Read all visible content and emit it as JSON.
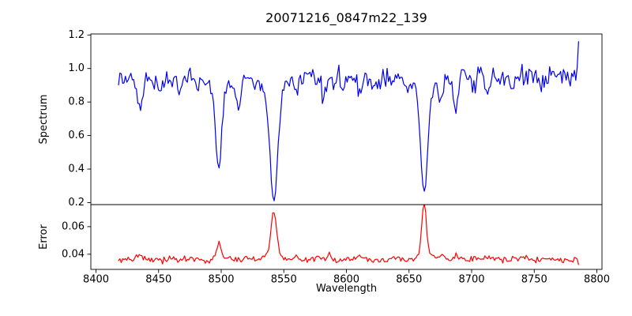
{
  "chart_data": {
    "type": "line",
    "title": "20071216_0847m22_139",
    "xlabel": "Wavelength",
    "xlim": [
      8395.9,
      8804.1
    ],
    "xticks": [
      {
        "v": 8400,
        "label": "8400"
      },
      {
        "v": 8450,
        "label": "8450"
      },
      {
        "v": 8500,
        "label": "8500"
      },
      {
        "v": 8550,
        "label": "8550"
      },
      {
        "v": 8600,
        "label": "8600"
      },
      {
        "v": 8650,
        "label": "8650"
      },
      {
        "v": 8700,
        "label": "8700"
      },
      {
        "v": 8750,
        "label": "8750"
      },
      {
        "v": 8800,
        "label": "8800"
      }
    ],
    "grid": false,
    "legend": null,
    "panels": [
      {
        "name": "spectrum",
        "ylabel": "Spectrum",
        "ylim": [
          0.188,
          1.206
        ],
        "yticks": [
          {
            "v": 0.2,
            "label": "0.2"
          },
          {
            "v": 0.4,
            "label": "0.4"
          },
          {
            "v": 0.6,
            "label": "0.6"
          },
          {
            "v": 0.8,
            "label": "0.8"
          },
          {
            "v": 1.0,
            "label": "1.0"
          },
          {
            "v": 1.2,
            "label": "1.2"
          }
        ],
        "color": "#0000ee",
        "series_model": {
          "x_start": 8418,
          "x_end": 8786,
          "step": 1.1,
          "continuum": 0.94,
          "continuum_slope": 5e-05,
          "noise_sigma": 0.029,
          "seed": 20071216,
          "absorption_lines": [
            {
              "center": 8435.0,
              "depth": 0.17,
              "sigma": 2.2
            },
            {
              "center": 8452.0,
              "depth": 0.07,
              "sigma": 2.0
            },
            {
              "center": 8468.0,
              "depth": 0.09,
              "sigma": 2.0
            },
            {
              "center": 8481.0,
              "depth": 0.07,
              "sigma": 1.8
            },
            {
              "center": 8498.0,
              "depth": 0.48,
              "sigma": 2.4,
              "wing_depth": 0.06,
              "wing_sigma": 7
            },
            {
              "center": 8514.0,
              "depth": 0.17,
              "sigma": 2.2
            },
            {
              "center": 8526.0,
              "depth": 0.06,
              "sigma": 2.0
            },
            {
              "center": 8542.1,
              "depth": 0.66,
              "sigma": 3.0,
              "wing_depth": 0.08,
              "wing_sigma": 9
            },
            {
              "center": 8560.0,
              "depth": 0.08,
              "sigma": 2.0
            },
            {
              "center": 8582.0,
              "depth": 0.11,
              "sigma": 2.0
            },
            {
              "center": 8598.0,
              "depth": 0.07,
              "sigma": 1.8
            },
            {
              "center": 8611.0,
              "depth": 0.09,
              "sigma": 1.8
            },
            {
              "center": 8621.0,
              "depth": 0.07,
              "sigma": 1.8
            },
            {
              "center": 8648.0,
              "depth": 0.06,
              "sigma": 1.8
            },
            {
              "center": 8662.1,
              "depth": 0.62,
              "sigma": 2.8,
              "wing_depth": 0.07,
              "wing_sigma": 8
            },
            {
              "center": 8675.0,
              "depth": 0.13,
              "sigma": 1.8
            },
            {
              "center": 8687.0,
              "depth": 0.18,
              "sigma": 2.0
            },
            {
              "center": 8702.0,
              "depth": 0.08,
              "sigma": 1.8
            },
            {
              "center": 8713.0,
              "depth": 0.09,
              "sigma": 1.8
            },
            {
              "center": 8733.0,
              "depth": 0.09,
              "sigma": 1.8
            },
            {
              "center": 8755.0,
              "depth": 0.07,
              "sigma": 1.8
            }
          ],
          "end_spike_value": 1.16
        }
      },
      {
        "name": "error",
        "ylabel": "Error",
        "ylim": [
          0.029,
          0.076
        ],
        "yticks": [
          {
            "v": 0.04,
            "label": "0.04"
          },
          {
            "v": 0.06,
            "label": "0.06"
          }
        ],
        "color": "#ff0000",
        "series_model": {
          "x_start": 8418,
          "x_end": 8786,
          "step": 1.1,
          "baseline": 0.036,
          "baseline_slope": 0.0,
          "noise_sigma": 0.0011,
          "seed": 847139,
          "peaks": [
            {
              "center": 8435.0,
              "amplitude": 0.003,
              "sigma": 2.0
            },
            {
              "center": 8470.0,
              "amplitude": 0.0015,
              "sigma": 2.0
            },
            {
              "center": 8498.0,
              "amplitude": 0.013,
              "sigma": 2.0
            },
            {
              "center": 8520.0,
              "amplitude": 0.0015,
              "sigma": 2.0
            },
            {
              "center": 8542.1,
              "amplitude": 0.031,
              "sigma": 2.2,
              "wing_amp": 0.004,
              "wing_sigma": 7
            },
            {
              "center": 8560.0,
              "amplitude": 0.0025,
              "sigma": 1.8
            },
            {
              "center": 8578.0,
              "amplitude": 0.0035,
              "sigma": 1.5
            },
            {
              "center": 8586.0,
              "amplitude": 0.0035,
              "sigma": 1.5
            },
            {
              "center": 8610.0,
              "amplitude": 0.0035,
              "sigma": 2.0
            },
            {
              "center": 8640.0,
              "amplitude": 0.0015,
              "sigma": 2.0
            },
            {
              "center": 8662.1,
              "amplitude": 0.037,
              "sigma": 1.9,
              "wing_amp": 0.003,
              "wing_sigma": 6
            },
            {
              "center": 8676.0,
              "amplitude": 0.002,
              "sigma": 2.0
            },
            {
              "center": 8688.0,
              "amplitude": 0.003,
              "sigma": 2.0
            },
            {
              "center": 8713.0,
              "amplitude": 0.002,
              "sigma": 2.0
            },
            {
              "center": 8740.0,
              "amplitude": 0.0018,
              "sigma": 2.0
            }
          ],
          "end_value": 0.0325
        }
      }
    ]
  }
}
